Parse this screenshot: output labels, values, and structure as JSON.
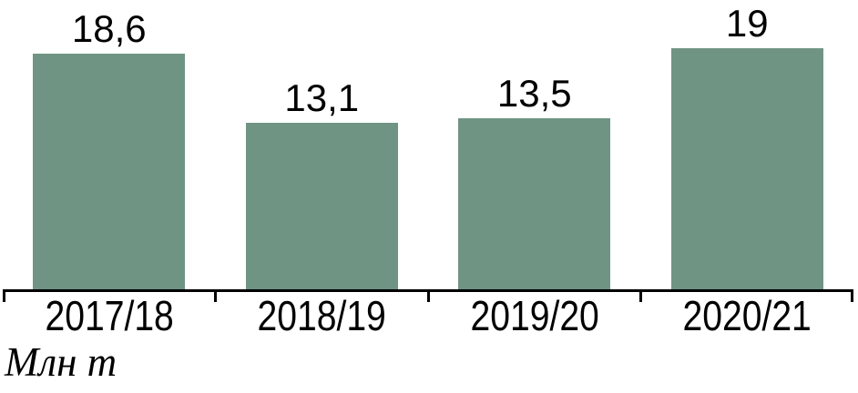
{
  "chart_data": {
    "type": "bar",
    "categories": [
      "2017/18",
      "2018/19",
      "2019/20",
      "2020/21"
    ],
    "values": [
      18.6,
      13.1,
      13.5,
      19
    ],
    "value_labels": [
      "18,6",
      "13,1",
      "13,5",
      "19"
    ],
    "title": "",
    "xlabel": "",
    "ylabel": "Млн т",
    "unit_label": "Млн т",
    "ylim": [
      0,
      21
    ],
    "grid": false,
    "legend_position": "none",
    "bar_color": "#6F9484",
    "axis_color": "#000000",
    "label_color": "#000000",
    "background_color": "#FFFFFF"
  }
}
